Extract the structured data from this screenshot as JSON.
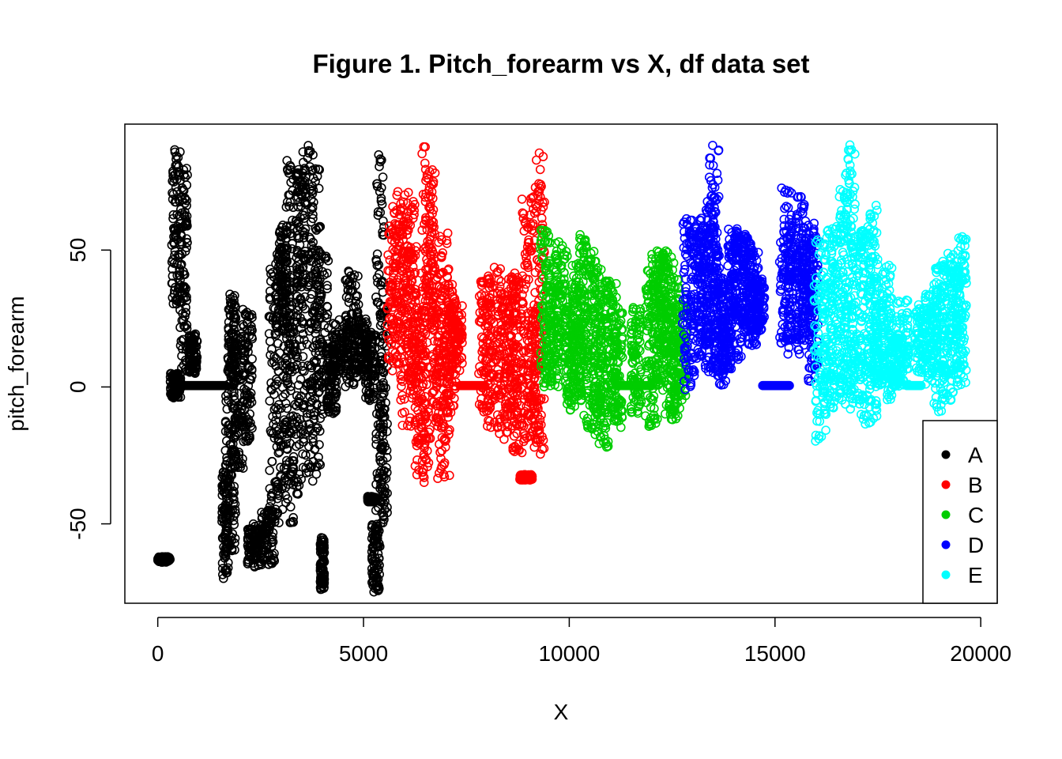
{
  "chart_data": {
    "type": "scatter",
    "title": "Figure 1. Pitch_forearm vs X, df data set",
    "xlabel": "X",
    "ylabel": "pitch_forearm",
    "xlim": [
      -800,
      20400
    ],
    "ylim": [
      -79,
      96
    ],
    "x_ticks": [
      0,
      5000,
      10000,
      15000,
      20000
    ],
    "y_ticks": [
      -50,
      0,
      50
    ],
    "x_tick_labels": [
      "0",
      "5000",
      "10000",
      "15000",
      "20000"
    ],
    "y_tick_labels": [
      "-50",
      "0",
      "50"
    ],
    "marker": "open-circle",
    "legend_position": "bottom-right",
    "series": [
      {
        "name": "A",
        "color": "#000000",
        "x_range": [
          1,
          5580
        ],
        "segments": [
          [
            0,
            300,
            -64,
            -62
          ],
          [
            300,
            560,
            -4,
            5
          ],
          [
            340,
            560,
            30,
            88
          ],
          [
            540,
            720,
            5,
            80
          ],
          [
            560,
            1650,
            0,
            1
          ],
          [
            760,
            960,
            5,
            20
          ],
          [
            1560,
            1720,
            -70,
            -30
          ],
          [
            1640,
            1900,
            -60,
            0
          ],
          [
            1700,
            1900,
            0,
            34
          ],
          [
            1760,
            2080,
            -30,
            20
          ],
          [
            2060,
            2300,
            -20,
            29
          ],
          [
            2180,
            2500,
            -66,
            -50
          ],
          [
            2500,
            2850,
            -65,
            -45
          ],
          [
            2700,
            2950,
            -50,
            45
          ],
          [
            2850,
            3150,
            -45,
            50
          ],
          [
            2950,
            3150,
            20,
            60
          ],
          [
            3100,
            3300,
            -50,
            84
          ],
          [
            3200,
            3550,
            -40,
            30
          ],
          [
            3350,
            3600,
            30,
            80
          ],
          [
            3500,
            3800,
            -35,
            89
          ],
          [
            3700,
            3950,
            -35,
            80
          ],
          [
            3800,
            4150,
            -10,
            50
          ],
          [
            3950,
            4050,
            -74,
            -55
          ],
          [
            4100,
            4350,
            -10,
            15
          ],
          [
            4250,
            4650,
            5,
            25
          ],
          [
            4550,
            4900,
            0,
            43
          ],
          [
            4750,
            5100,
            5,
            25
          ],
          [
            5050,
            5300,
            -5,
            20
          ],
          [
            5100,
            5300,
            -42,
            -40
          ],
          [
            5200,
            5400,
            -75,
            -50
          ],
          [
            5300,
            5500,
            -55,
            85
          ],
          [
            5400,
            5580,
            -50,
            30
          ]
        ],
        "y_range": [
          -74,
          89
        ]
      },
      {
        "name": "B",
        "color": "#ff0000",
        "x_range": [
          5580,
          9400
        ],
        "segments": [
          [
            5580,
            5900,
            5,
            60
          ],
          [
            5700,
            6100,
            10,
            72
          ],
          [
            5900,
            6300,
            -15,
            70
          ],
          [
            6050,
            6300,
            0,
            50
          ],
          [
            6250,
            6500,
            -36,
            30
          ],
          [
            6400,
            6700,
            -30,
            89
          ],
          [
            6500,
            6750,
            20,
            80
          ],
          [
            6650,
            6950,
            -15,
            50
          ],
          [
            6800,
            7100,
            -35,
            57
          ],
          [
            6950,
            7250,
            -10,
            40
          ],
          [
            7100,
            7400,
            5,
            30
          ],
          [
            7350,
            7950,
            0,
            1
          ],
          [
            7800,
            8100,
            -10,
            40
          ],
          [
            8000,
            8350,
            -15,
            45
          ],
          [
            8250,
            8600,
            -20,
            35
          ],
          [
            8450,
            8750,
            -15,
            40
          ],
          [
            8600,
            8900,
            -24,
            42
          ],
          [
            8800,
            9100,
            -34,
            -32
          ],
          [
            8850,
            9150,
            -20,
            70
          ],
          [
            9000,
            9300,
            -20,
            30
          ],
          [
            9150,
            9400,
            -25,
            88
          ]
        ],
        "y_range": [
          -36,
          89
        ]
      },
      {
        "name": "C",
        "color": "#00cd00",
        "x_range": [
          9400,
          12850
        ],
        "segments": [
          [
            9300,
            9550,
            0,
            58
          ],
          [
            9450,
            9750,
            0,
            40
          ],
          [
            9650,
            9950,
            5,
            55
          ],
          [
            9900,
            10150,
            -10,
            30
          ],
          [
            10050,
            10300,
            0,
            45
          ],
          [
            10200,
            10450,
            -5,
            56
          ],
          [
            10350,
            10650,
            -15,
            50
          ],
          [
            10550,
            10800,
            -20,
            45
          ],
          [
            10700,
            10950,
            -22,
            35
          ],
          [
            10850,
            11150,
            -10,
            40
          ],
          [
            11050,
            11300,
            -15,
            30
          ],
          [
            11200,
            11600,
            0,
            1
          ],
          [
            11500,
            11750,
            -10,
            30
          ],
          [
            11650,
            11950,
            0,
            1
          ],
          [
            11850,
            12150,
            -15,
            45
          ],
          [
            12000,
            12250,
            0,
            50
          ],
          [
            12150,
            12400,
            10,
            50
          ],
          [
            12250,
            12550,
            -10,
            48
          ],
          [
            12450,
            12700,
            -12,
            40
          ],
          [
            12550,
            12850,
            -5,
            30
          ]
        ],
        "y_range": [
          -22,
          58
        ]
      },
      {
        "name": "D",
        "color": "#0000ff",
        "x_range": [
          12850,
          16100
        ],
        "segments": [
          [
            12750,
            13050,
            -3,
            62
          ],
          [
            12950,
            13250,
            10,
            60
          ],
          [
            13150,
            13400,
            15,
            62
          ],
          [
            13300,
            13550,
            5,
            70
          ],
          [
            13400,
            13650,
            15,
            89
          ],
          [
            13550,
            13800,
            0,
            40
          ],
          [
            13700,
            13950,
            5,
            25
          ],
          [
            13850,
            14100,
            25,
            58
          ],
          [
            14000,
            14300,
            10,
            56
          ],
          [
            14200,
            14450,
            20,
            55
          ],
          [
            14350,
            14600,
            15,
            50
          ],
          [
            14500,
            14750,
            20,
            40
          ],
          [
            14700,
            15350,
            0,
            1
          ],
          [
            15100,
            15400,
            15,
            75
          ],
          [
            15300,
            15600,
            10,
            60
          ],
          [
            15500,
            15750,
            15,
            70
          ],
          [
            15650,
            15950,
            20,
            60
          ],
          [
            15800,
            16050,
            0,
            55
          ]
        ],
        "y_range": [
          -3,
          89
        ]
      },
      {
        "name": "E",
        "color": "#00ffff",
        "x_range": [
          16100,
          19650
        ],
        "segments": [
          [
            15950,
            16250,
            -20,
            55
          ],
          [
            16150,
            16450,
            -10,
            58
          ],
          [
            16350,
            16650,
            -5,
            60
          ],
          [
            16550,
            16850,
            -5,
            75
          ],
          [
            16700,
            16950,
            -10,
            92
          ],
          [
            16850,
            17150,
            -5,
            55
          ],
          [
            17050,
            17350,
            -15,
            58
          ],
          [
            17250,
            17500,
            -12,
            67
          ],
          [
            17400,
            17650,
            0,
            40
          ],
          [
            17600,
            17850,
            -5,
            45
          ],
          [
            17750,
            18050,
            0,
            20
          ],
          [
            17950,
            18250,
            0,
            32
          ],
          [
            18200,
            18550,
            0,
            1
          ],
          [
            18400,
            18700,
            5,
            30
          ],
          [
            18650,
            18950,
            0,
            35
          ],
          [
            18850,
            19150,
            -10,
            45
          ],
          [
            19050,
            19350,
            -5,
            50
          ],
          [
            19250,
            19550,
            0,
            45
          ],
          [
            19400,
            19650,
            0,
            55
          ]
        ],
        "y_range": [
          -20,
          92
        ]
      }
    ]
  }
}
